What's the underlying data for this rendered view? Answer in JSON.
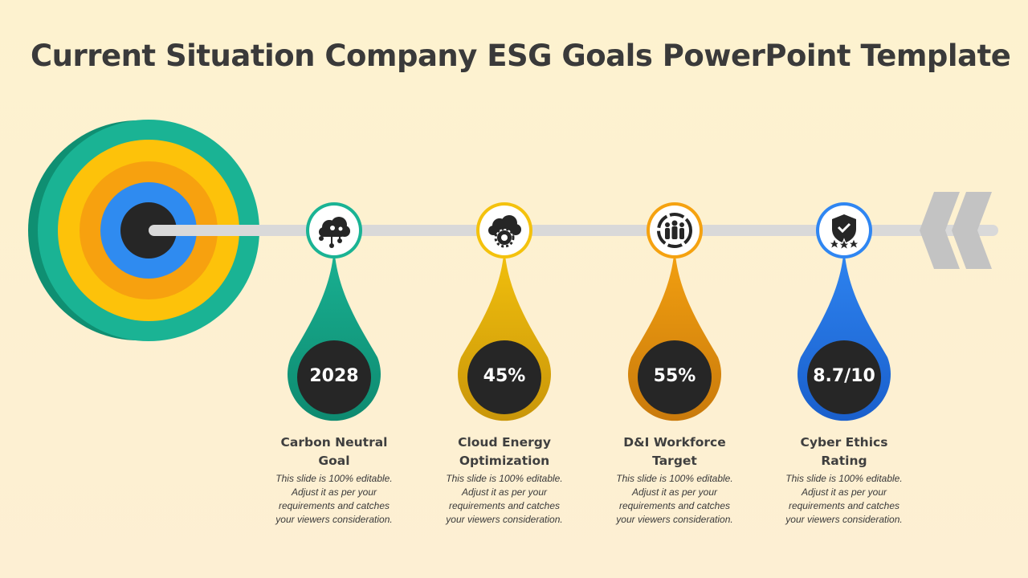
{
  "slide": {
    "title": "Current Situation Company ESG Goals PowerPoint Template"
  },
  "colors": {
    "background": "#fdf0d0",
    "track": "#d9d9d9",
    "target_outer": "#1ab394",
    "target_yellow": "#fdc20a",
    "target_orange": "#f7a10f",
    "target_blue": "#2f8bf0",
    "target_center": "#262626"
  },
  "milestones": [
    {
      "value": "2028",
      "title": "Carbon Neutral Goal",
      "description": "This slide is 100% editable. Adjust it as per your requirements and catches your viewers consideration.",
      "color": "#1ab394",
      "color_dark": "#0e8a70",
      "icon": "cloud-network-icon"
    },
    {
      "value": "45%",
      "title": "Cloud Energy Optimization",
      "description": "This slide is 100% editable. Adjust it as per your requirements and catches your viewers consideration.",
      "color": "#f4c20d",
      "color_dark": "#c9960a",
      "icon": "cloud-gear-icon"
    },
    {
      "value": "55%",
      "title": "D&I Workforce Target",
      "description": "This slide is 100% editable. Adjust it as per your requirements and catches your viewers consideration.",
      "color": "#f5a210",
      "color_dark": "#c97a0c",
      "icon": "workforce-icon"
    },
    {
      "value": "8.7/10",
      "title": "Cyber Ethics Rating",
      "description": "This slide is 100% editable. Adjust it as per your requirements and catches your viewers consideration.",
      "color": "#2f86f2",
      "color_dark": "#1a5fcc",
      "icon": "shield-stars-icon"
    }
  ]
}
